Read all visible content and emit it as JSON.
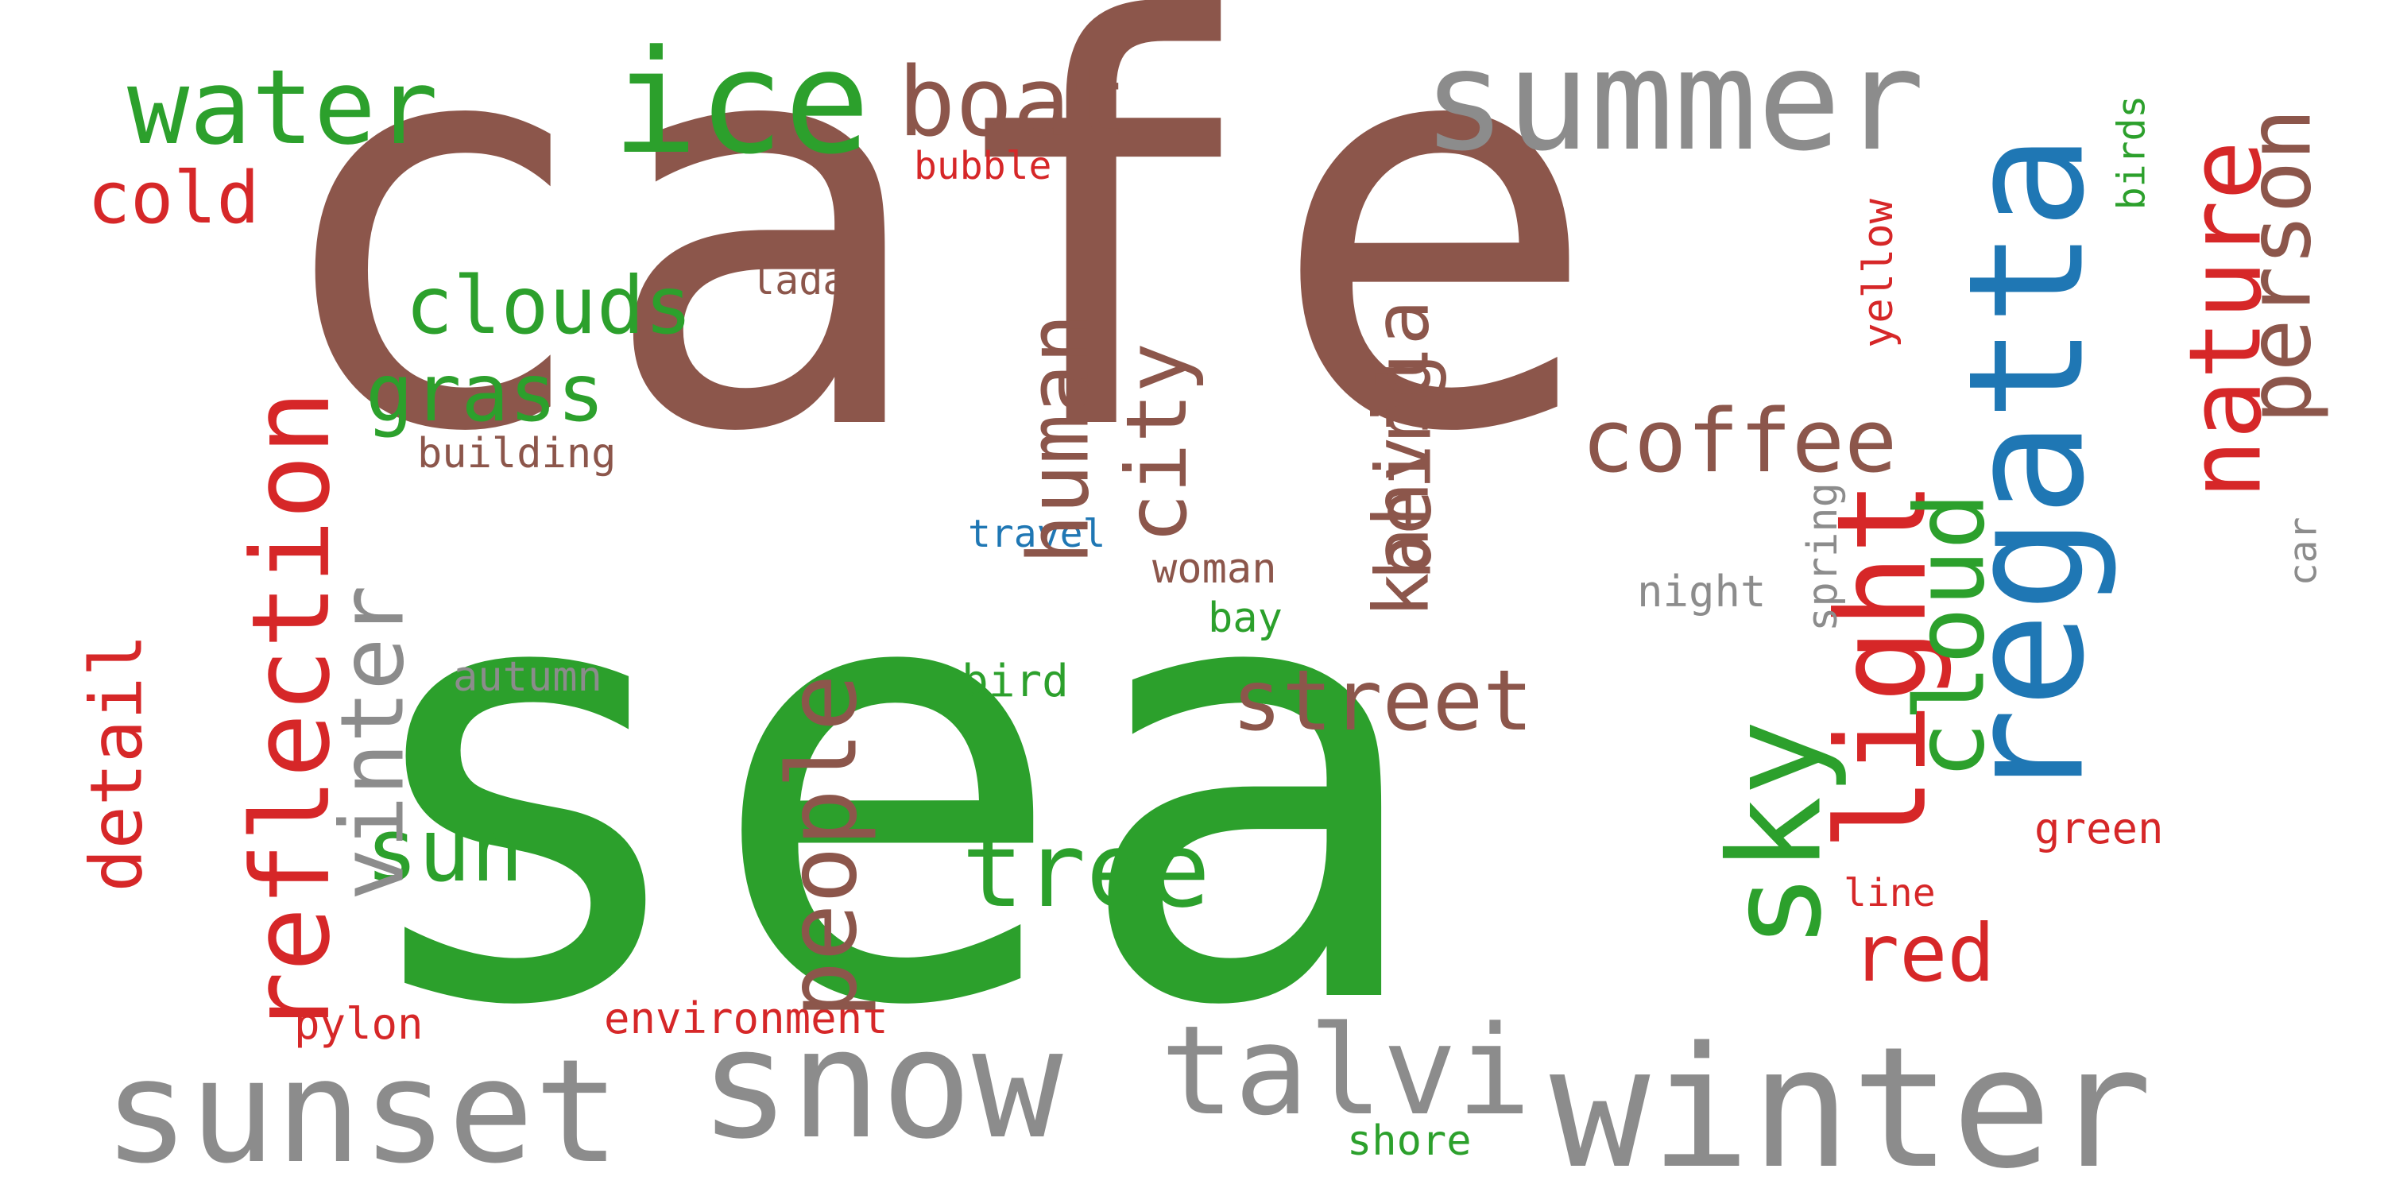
{
  "palette": {
    "green": "#2ca02c",
    "brown": "#8c564b",
    "blue": "#1f77b4",
    "red": "#d62728",
    "gray": "#8c8c8c"
  },
  "words": {
    "cafe": "cafe",
    "sea": "sea",
    "winter": "winter",
    "snow": "snow",
    "sunset": "sunset",
    "talvi": "talvi",
    "regatta": "regatta",
    "summer": "summer",
    "sky": "sky",
    "water": "water",
    "ice": "ice",
    "boat": "boat",
    "bubble": "bubble",
    "cold": "cold",
    "clouds": "clouds",
    "lada": "lada",
    "grass": "grass",
    "building": "building",
    "reflection": "reflection",
    "detail": "detail",
    "vinter": "vinter",
    "autumn": "autumn",
    "sun": "sun",
    "pylon": "pylon",
    "environment": "environment",
    "people": "people",
    "human": "human",
    "city": "city",
    "travel": "travel",
    "tree": "tree",
    "bird": "bird",
    "woman": "woman",
    "bay": "bay",
    "being": "being",
    "kahvila": "kahvila",
    "street": "street",
    "coffee": "coffee",
    "cloud": "cloud",
    "red": "red",
    "light": "light",
    "nature": "nature",
    "person": "person",
    "yellow": "yellow",
    "birds": "birds",
    "spring": "spring",
    "night": "night",
    "green": "green",
    "line": "line",
    "car": "car",
    "shore": "shore"
  }
}
